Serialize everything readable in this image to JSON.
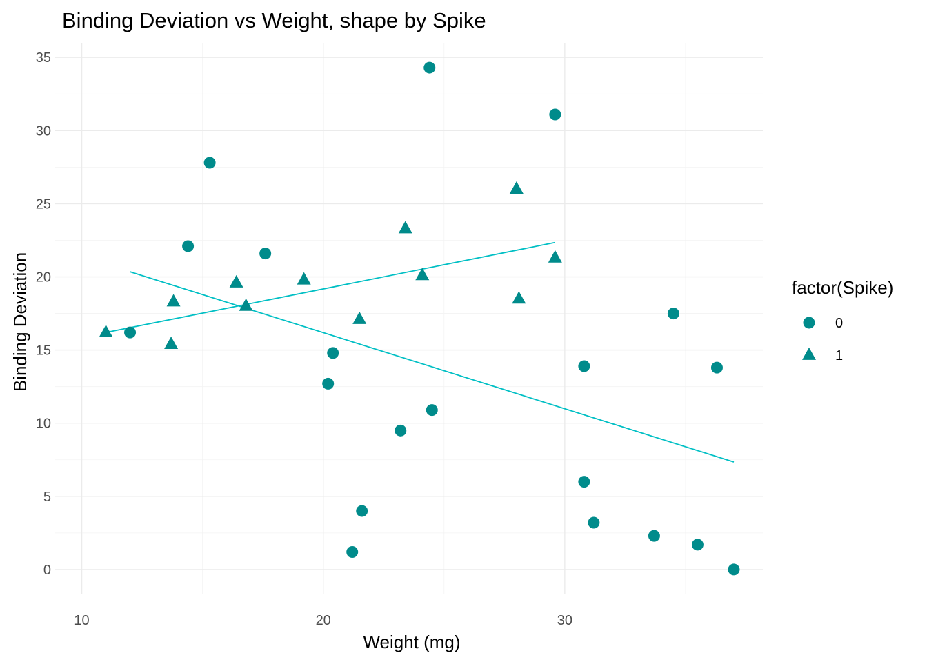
{
  "chart_data": {
    "type": "scatter",
    "title": "Binding Deviation vs Weight, shape by Spike",
    "xlabel": "Weight (mg)",
    "ylabel": "Binding Deviation",
    "xlim": [
      8.9,
      38.2
    ],
    "ylim": [
      -1.7,
      36.0
    ],
    "x_ticks": [
      10,
      20,
      30
    ],
    "y_ticks": [
      0,
      5,
      10,
      15,
      20,
      25,
      30,
      35
    ],
    "grid": true,
    "point_color": "#008b8b",
    "line_color": "#00bfc4",
    "legend": {
      "title": "factor(Spike)",
      "placement": "right",
      "entries": [
        {
          "label": "0",
          "shape": "circle"
        },
        {
          "label": "1",
          "shape": "triangle"
        }
      ]
    },
    "series": [
      {
        "name": "0",
        "shape": "circle",
        "points": [
          {
            "x": 12.0,
            "y": 16.2
          },
          {
            "x": 14.4,
            "y": 22.1
          },
          {
            "x": 15.3,
            "y": 27.8
          },
          {
            "x": 17.6,
            "y": 21.6
          },
          {
            "x": 20.2,
            "y": 12.7
          },
          {
            "x": 20.4,
            "y": 14.8
          },
          {
            "x": 21.2,
            "y": 1.2
          },
          {
            "x": 21.6,
            "y": 4.0
          },
          {
            "x": 23.2,
            "y": 9.5
          },
          {
            "x": 24.4,
            "y": 34.3
          },
          {
            "x": 24.5,
            "y": 10.9
          },
          {
            "x": 29.6,
            "y": 31.1
          },
          {
            "x": 30.8,
            "y": 13.9
          },
          {
            "x": 30.8,
            "y": 6.0
          },
          {
            "x": 31.2,
            "y": 3.2
          },
          {
            "x": 33.7,
            "y": 2.3
          },
          {
            "x": 34.5,
            "y": 17.5
          },
          {
            "x": 35.5,
            "y": 1.7
          },
          {
            "x": 36.3,
            "y": 13.8
          },
          {
            "x": 37.0,
            "y": 0.0
          }
        ],
        "fit": {
          "x": [
            12.0,
            37.0
          ],
          "y": [
            20.35,
            7.35
          ]
        }
      },
      {
        "name": "1",
        "shape": "triangle",
        "points": [
          {
            "x": 11.0,
            "y": 16.2
          },
          {
            "x": 13.7,
            "y": 15.4
          },
          {
            "x": 13.8,
            "y": 18.3
          },
          {
            "x": 16.4,
            "y": 19.6
          },
          {
            "x": 16.8,
            "y": 18.0
          },
          {
            "x": 19.2,
            "y": 19.8
          },
          {
            "x": 21.5,
            "y": 17.1
          },
          {
            "x": 23.4,
            "y": 23.3
          },
          {
            "x": 24.1,
            "y": 20.1
          },
          {
            "x": 28.0,
            "y": 26.0
          },
          {
            "x": 28.1,
            "y": 18.5
          },
          {
            "x": 29.6,
            "y": 21.3
          }
        ],
        "fit": {
          "x": [
            11.0,
            29.6
          ],
          "y": [
            16.2,
            22.35
          ]
        }
      }
    ]
  }
}
